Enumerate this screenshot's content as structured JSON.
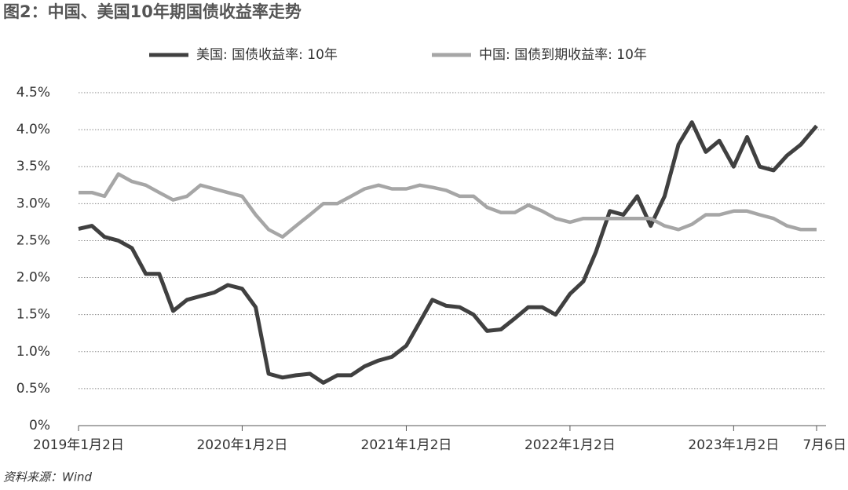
{
  "chart_data": {
    "type": "line",
    "title": "图2：中国、美国10年期国债收益率走势",
    "source": "资料来源：Wind",
    "x": [
      "2019-01-02",
      "2019-02-01",
      "2019-03-01",
      "2019-04-01",
      "2019-05-01",
      "2019-06-01",
      "2019-07-01",
      "2019-08-01",
      "2019-09-01",
      "2019-10-01",
      "2019-11-01",
      "2019-12-01",
      "2020-01-02",
      "2020-02-01",
      "2020-03-01",
      "2020-04-01",
      "2020-05-01",
      "2020-06-01",
      "2020-07-01",
      "2020-08-01",
      "2020-09-01",
      "2020-10-01",
      "2020-11-01",
      "2020-12-01",
      "2021-01-02",
      "2021-02-01",
      "2021-03-01",
      "2021-04-01",
      "2021-05-01",
      "2021-06-01",
      "2021-07-01",
      "2021-08-01",
      "2021-09-01",
      "2021-10-01",
      "2021-11-01",
      "2021-12-01",
      "2022-01-02",
      "2022-02-01",
      "2022-03-01",
      "2022-04-01",
      "2022-05-01",
      "2022-06-01",
      "2022-07-01",
      "2022-08-01",
      "2022-09-01",
      "2022-10-01",
      "2022-11-01",
      "2022-12-01",
      "2023-01-02",
      "2023-02-01",
      "2023-03-01",
      "2023-04-01",
      "2023-05-01",
      "2023-06-01",
      "2023-07-06"
    ],
    "series": [
      {
        "name": "美国: 国债收益率: 10年",
        "color": "#404040",
        "values": [
          2.66,
          2.7,
          2.55,
          2.5,
          2.4,
          2.05,
          2.05,
          1.55,
          1.7,
          1.75,
          1.8,
          1.9,
          1.85,
          1.6,
          0.7,
          0.65,
          0.68,
          0.7,
          0.58,
          0.68,
          0.68,
          0.8,
          0.88,
          0.93,
          1.08,
          1.4,
          1.7,
          1.62,
          1.6,
          1.5,
          1.28,
          1.3,
          1.45,
          1.6,
          1.6,
          1.5,
          1.78,
          1.95,
          2.35,
          2.9,
          2.85,
          3.1,
          2.7,
          3.1,
          3.8,
          4.1,
          3.7,
          3.85,
          3.5,
          3.9,
          3.5,
          3.45,
          3.65,
          3.8,
          4.05
        ]
      },
      {
        "name": "中国: 国债到期收益率: 10年",
        "color": "#a6a6a6",
        "values": [
          3.15,
          3.15,
          3.1,
          3.4,
          3.3,
          3.25,
          3.15,
          3.05,
          3.1,
          3.25,
          3.2,
          3.15,
          3.1,
          2.85,
          2.65,
          2.55,
          2.7,
          2.85,
          3.0,
          3.0,
          3.1,
          3.2,
          3.25,
          3.2,
          3.2,
          3.25,
          3.22,
          3.18,
          3.1,
          3.1,
          2.95,
          2.88,
          2.88,
          2.98,
          2.9,
          2.8,
          2.75,
          2.8,
          2.8,
          2.8,
          2.8,
          2.8,
          2.8,
          2.7,
          2.65,
          2.72,
          2.85,
          2.85,
          2.9,
          2.9,
          2.85,
          2.8,
          2.7,
          2.65,
          2.65
        ]
      }
    ],
    "xlim": [
      "2019-01-02",
      "2023-07-06"
    ],
    "xticks": [
      {
        "value": "2019-01-02",
        "label": "2019年1月2日"
      },
      {
        "value": "2020-01-02",
        "label": "2020年1月2日"
      },
      {
        "value": "2021-01-02",
        "label": "2021年1月2日"
      },
      {
        "value": "2022-01-02",
        "label": "2022年1月2日"
      },
      {
        "value": "2023-01-02",
        "label": "2023年1月2日"
      },
      {
        "value": "2023-07-06",
        "label": "7月6日"
      }
    ],
    "ylim": [
      0,
      4.5
    ],
    "yticks": [
      {
        "value": 0,
        "label": "0%"
      },
      {
        "value": 0.5,
        "label": "0.5%"
      },
      {
        "value": 1,
        "label": "1.0%"
      },
      {
        "value": 1.5,
        "label": "1.5%"
      },
      {
        "value": 2,
        "label": "2.0%"
      },
      {
        "value": 2.5,
        "label": "2.5%"
      },
      {
        "value": 3,
        "label": "3.0%"
      },
      {
        "value": 3.5,
        "label": "3.5%"
      },
      {
        "value": 4,
        "label": "4.0%"
      },
      {
        "value": 4.5,
        "label": "4.5%"
      }
    ],
    "grid": true
  }
}
